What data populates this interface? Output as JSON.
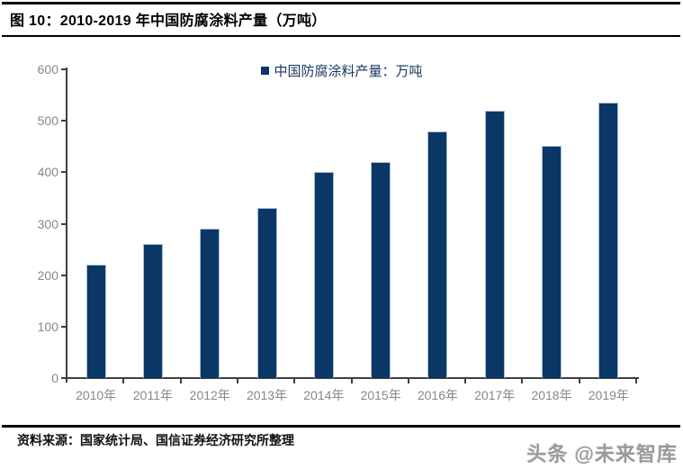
{
  "header": {
    "title": "图 10：2010-2019 年中国防腐涂料产量（万吨）"
  },
  "chart_data": {
    "type": "bar",
    "title": "2010-2019 年中国防腐涂料产量（万吨）",
    "legend": "中国防腐涂料产量：万吨",
    "categories": [
      "2010年",
      "2011年",
      "2012年",
      "2013年",
      "2014年",
      "2015年",
      "2016年",
      "2017年",
      "2018年",
      "2019年"
    ],
    "values": [
      220,
      260,
      290,
      330,
      400,
      420,
      480,
      520,
      452,
      535
    ],
    "xlabel": "",
    "ylabel": "",
    "ylim": [
      0,
      600
    ],
    "ytick_step": 100,
    "grid": false,
    "legend_position": "top-center",
    "colors": {
      "bar_fill": "#0a3765",
      "bar_border": "#a9c0d6",
      "axis": "#3f3f3f",
      "tick_label": "#878787",
      "legend_text": "#17375e"
    }
  },
  "footer": {
    "source": "资料来源：国家统计局、国信证券经济研究所整理",
    "watermark": "头条 @未来智库"
  }
}
